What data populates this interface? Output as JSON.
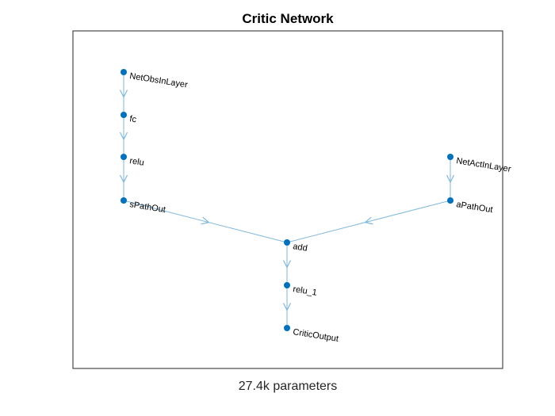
{
  "title": "Critic Network",
  "footer": "27.4k parameters",
  "colors": {
    "node": "#0072BD",
    "edge": "#7FB9DE",
    "axes": "#262626"
  },
  "nodes": [
    {
      "id": "NetObsInLayer",
      "label": "NetObsInLayer"
    },
    {
      "id": "fc",
      "label": "fc"
    },
    {
      "id": "relu",
      "label": "relu"
    },
    {
      "id": "sPathOut",
      "label": "sPathOut"
    },
    {
      "id": "NetActInLayer",
      "label": "NetActInLayer"
    },
    {
      "id": "aPathOut",
      "label": "aPathOut"
    },
    {
      "id": "add",
      "label": "add"
    },
    {
      "id": "relu_1",
      "label": "relu_1"
    },
    {
      "id": "CriticOutput",
      "label": "CriticOutput"
    }
  ],
  "edges": [
    {
      "from": "NetObsInLayer",
      "to": "fc"
    },
    {
      "from": "fc",
      "to": "relu"
    },
    {
      "from": "relu",
      "to": "sPathOut"
    },
    {
      "from": "sPathOut",
      "to": "add"
    },
    {
      "from": "NetActInLayer",
      "to": "aPathOut"
    },
    {
      "from": "aPathOut",
      "to": "add"
    },
    {
      "from": "add",
      "to": "relu_1"
    },
    {
      "from": "relu_1",
      "to": "CriticOutput"
    }
  ]
}
